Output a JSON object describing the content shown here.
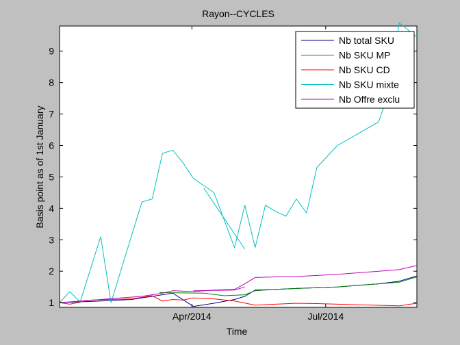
{
  "chart_data": {
    "type": "line",
    "title": "Rayon--CYCLES",
    "xlabel": "Time",
    "ylabel": "Basis point as of 1st January",
    "ylim": [
      0.85,
      9.8
    ],
    "yticks": [
      1,
      2,
      3,
      4,
      5,
      6,
      7,
      8,
      9
    ],
    "xlim": [
      "2014-01-01",
      "2014-09-01"
    ],
    "xticks": [
      {
        "label": "Apr/2014",
        "date": "2014-04-01"
      },
      {
        "label": "Jul/2014",
        "date": "2014-07-01"
      }
    ],
    "grid": false,
    "legend_position": "top-right",
    "series": [
      {
        "name": "Nb total SKU",
        "color": "#00008b",
        "points": [
          [
            "2014-01-01",
            1.0
          ],
          [
            "2014-01-29",
            1.05
          ],
          [
            "2014-02-19",
            1.1
          ],
          [
            "2014-03-05",
            1.2
          ],
          [
            "2014-03-19",
            1.3
          ],
          [
            "2014-04-02",
            0.88
          ],
          [
            "2014-04-16",
            0.98
          ],
          [
            "2014-04-30",
            1.1
          ],
          [
            "2014-05-07",
            1.2
          ],
          [
            "2014-05-14",
            1.4
          ],
          [
            "2014-05-28",
            1.42
          ],
          [
            "2014-06-11",
            1.45
          ],
          [
            "2014-07-09",
            1.5
          ],
          [
            "2014-08-06",
            1.6
          ],
          [
            "2014-08-20",
            1.68
          ],
          [
            "2014-09-01",
            1.85
          ]
        ]
      },
      {
        "name": "Nb SKU MP",
        "color": "#008000",
        "points": [
          [
            "2014-03-10",
            1.32
          ],
          [
            "2014-04-09",
            1.3
          ],
          [
            "2014-04-23",
            1.22
          ],
          [
            "2014-05-07",
            1.25
          ],
          [
            "2014-05-14",
            1.38
          ],
          [
            "2014-05-28",
            1.42
          ],
          [
            "2014-06-11",
            1.45
          ],
          [
            "2014-07-09",
            1.5
          ],
          [
            "2014-08-06",
            1.6
          ],
          [
            "2014-08-20",
            1.65
          ],
          [
            "2014-09-01",
            1.82
          ]
        ]
      },
      {
        "name": "Nb SKU CD",
        "color": "#ff0000",
        "points": [
          [
            "2014-01-01",
            1.0
          ],
          [
            "2014-01-08",
            0.95
          ],
          [
            "2014-01-22",
            1.08
          ],
          [
            "2014-02-19",
            1.12
          ],
          [
            "2014-03-05",
            1.22
          ],
          [
            "2014-03-12",
            1.05
          ],
          [
            "2014-03-19",
            1.1
          ],
          [
            "2014-03-26",
            1.08
          ],
          [
            "2014-04-02",
            1.15
          ],
          [
            "2014-04-16",
            1.12
          ],
          [
            "2014-04-30",
            1.05
          ],
          [
            "2014-05-14",
            0.92
          ],
          [
            "2014-05-28",
            0.95
          ],
          [
            "2014-06-11",
            0.98
          ],
          [
            "2014-06-25",
            0.97
          ],
          [
            "2014-07-09",
            0.95
          ],
          [
            "2014-07-23",
            0.93
          ],
          [
            "2014-08-20",
            0.9
          ],
          [
            "2014-09-01",
            0.98
          ]
        ]
      },
      {
        "name": "Nb SKU mixte",
        "color": "#00bfbf",
        "points": [
          [
            "2014-01-01",
            1.0
          ],
          [
            "2014-01-08",
            1.35
          ],
          [
            "2014-01-15",
            1.02
          ],
          [
            "2014-01-29",
            3.1
          ],
          [
            "2014-02-05",
            1.0
          ],
          [
            "2014-02-26",
            4.2
          ],
          [
            "2014-03-05",
            4.3
          ],
          [
            "2014-03-12",
            5.75
          ],
          [
            "2014-03-19",
            5.85
          ],
          [
            "2014-03-26",
            5.45
          ],
          [
            "2014-04-02",
            4.95
          ],
          [
            "2014-04-16",
            4.5
          ],
          [
            "2014-04-30",
            2.75
          ],
          [
            "2014-05-07",
            4.1
          ],
          [
            "2014-05-14",
            2.75
          ],
          [
            "2014-05-21",
            4.1
          ],
          [
            "2014-05-28",
            3.9
          ],
          [
            "2014-06-04",
            3.75
          ],
          [
            "2014-06-11",
            4.3
          ],
          [
            "2014-06-18",
            3.85
          ],
          [
            "2014-06-25",
            5.3
          ],
          [
            "2014-07-09",
            6.0
          ],
          [
            "2014-08-06",
            6.75
          ],
          [
            "2014-08-13",
            7.7
          ],
          [
            "2014-08-20",
            9.9
          ],
          [
            "2014-09-01",
            9.45
          ]
        ]
      },
      {
        "name": "Nb SKU mixte",
        "color": "#00bfbf",
        "points": [
          [
            "2014-04-09",
            4.65
          ],
          [
            "2014-05-07",
            2.7
          ]
        ]
      },
      {
        "name": "Nb Offre exclu",
        "color": "#bf00bf",
        "points": [
          [
            "2014-01-01",
            1.0
          ],
          [
            "2014-01-29",
            1.1
          ],
          [
            "2014-02-26",
            1.2
          ],
          [
            "2014-03-12",
            1.3
          ],
          [
            "2014-03-19",
            1.38
          ],
          [
            "2014-04-02",
            1.35
          ],
          [
            "2014-04-16",
            1.4
          ],
          [
            "2014-04-30",
            1.42
          ],
          [
            "2014-05-07",
            1.6
          ],
          [
            "2014-05-14",
            1.8
          ],
          [
            "2014-05-28",
            1.82
          ],
          [
            "2014-06-11",
            1.83
          ],
          [
            "2014-07-09",
            1.9
          ],
          [
            "2014-08-06",
            2.0
          ],
          [
            "2014-08-20",
            2.05
          ],
          [
            "2014-09-01",
            2.18
          ]
        ]
      },
      {
        "name": "Nb Offre exclu",
        "color": "#bf00bf",
        "points": [
          [
            "2014-04-02",
            1.38
          ],
          [
            "2014-04-30",
            1.4
          ],
          [
            "2014-05-07",
            1.5
          ]
        ]
      }
    ],
    "legend": [
      {
        "name": "Nb total SKU",
        "color": "#00008b"
      },
      {
        "name": "Nb SKU MP",
        "color": "#008000"
      },
      {
        "name": "Nb SKU CD",
        "color": "#ff0000"
      },
      {
        "name": "Nb SKU mixte",
        "color": "#00bfbf"
      },
      {
        "name": "Nb Offre exclu",
        "color": "#bf00bf"
      }
    ]
  }
}
